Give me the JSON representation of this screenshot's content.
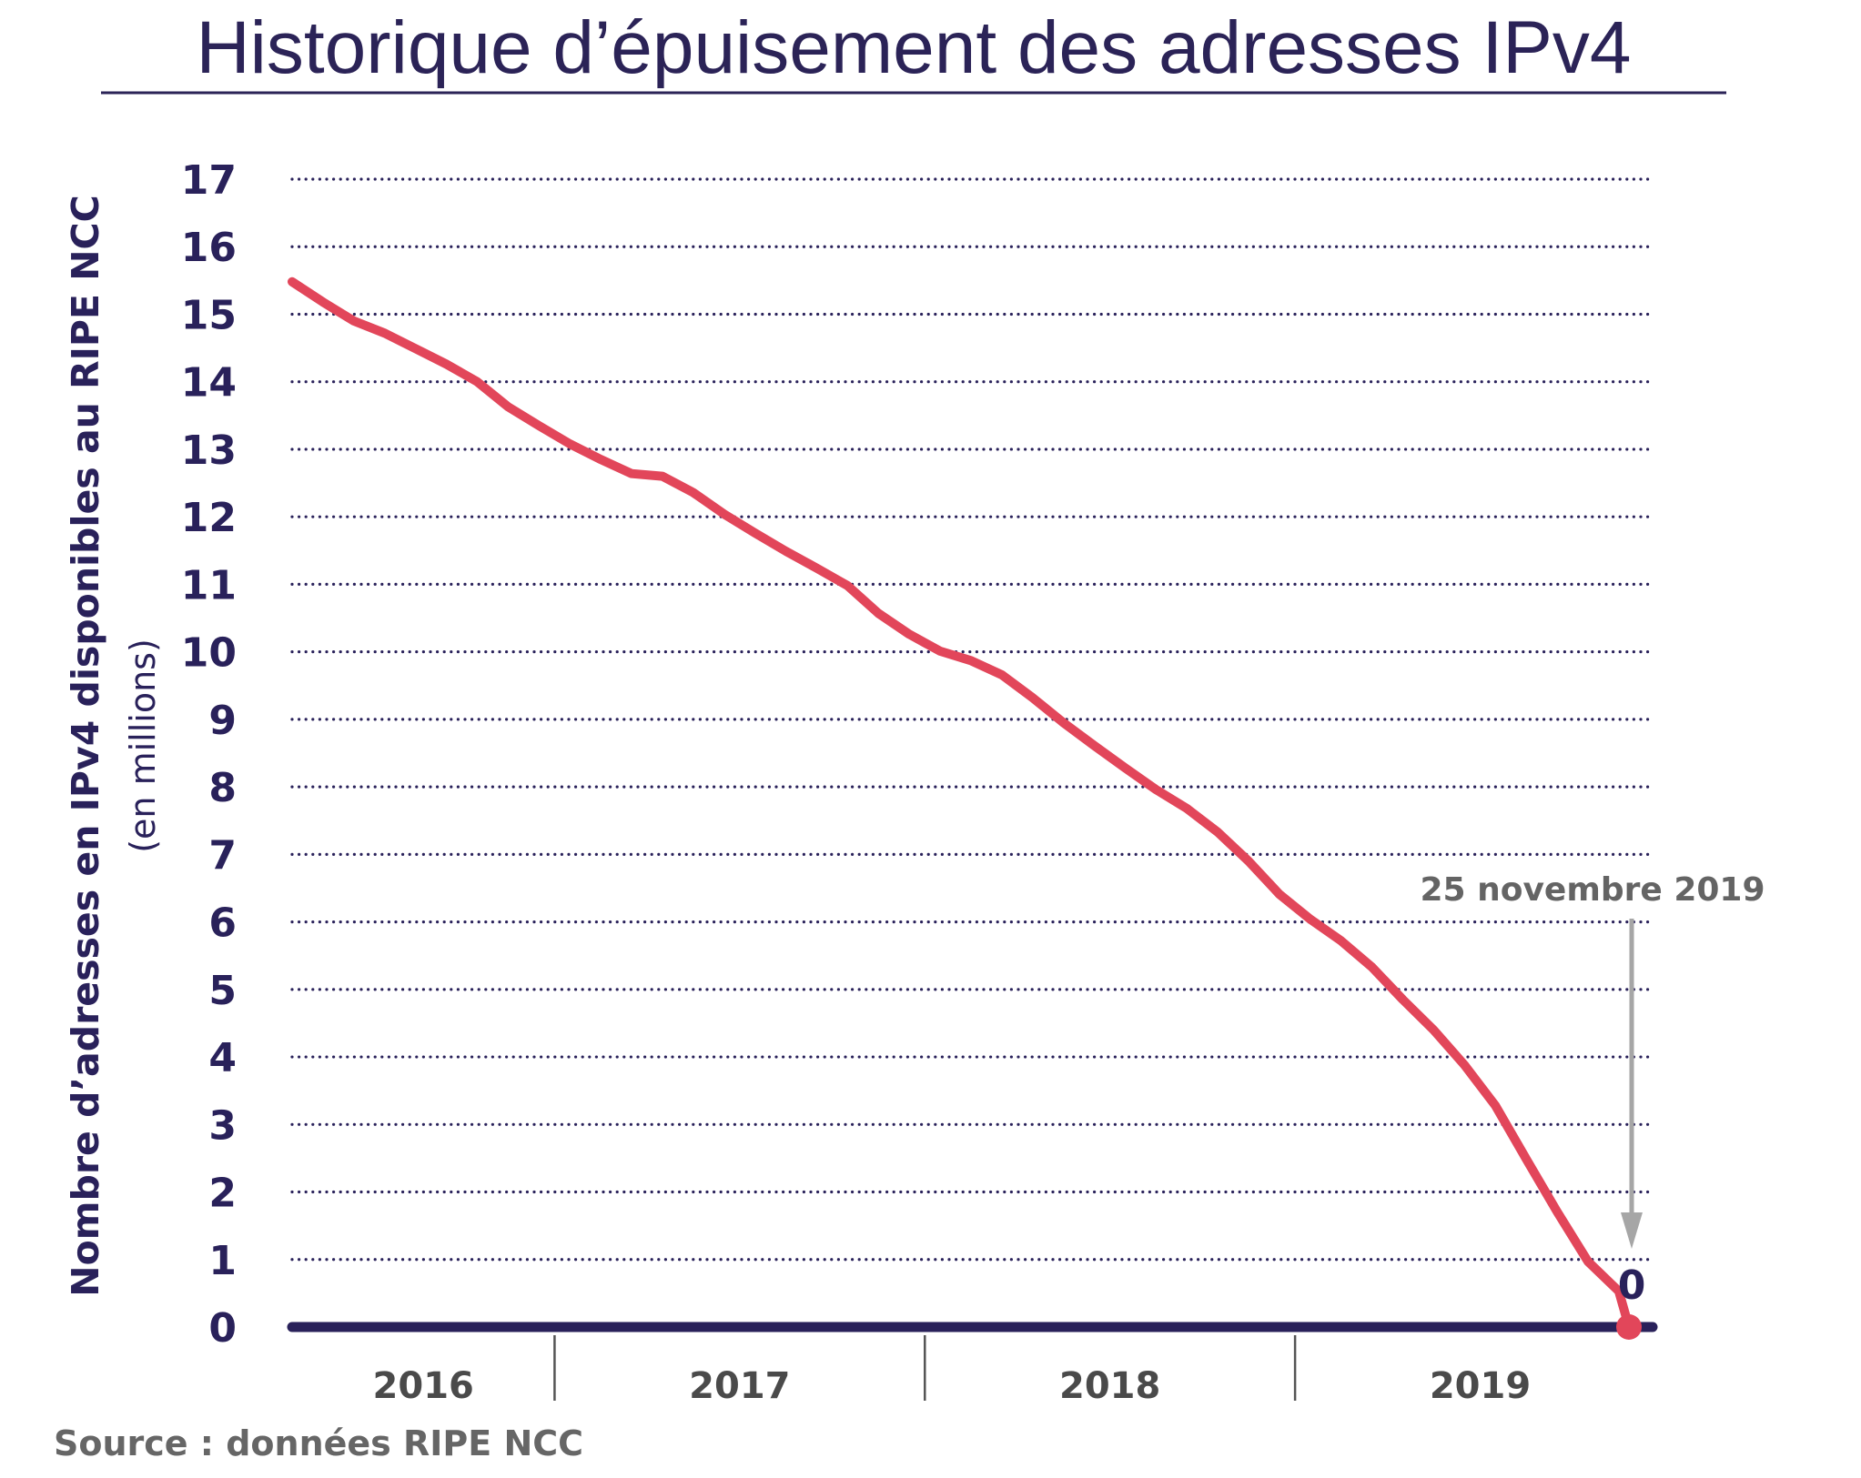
{
  "chart_data": {
    "type": "line",
    "title": "Historique d’épuisement des adresses IPv4",
    "ylabel": "Nombre d’adresses en IPv4 disponibles au RIPE NCC",
    "ylabel_unit": "(en millions)",
    "xlabel": "",
    "source": "Source : données RIPE NCC",
    "ylim": [
      0,
      17
    ],
    "yticks": [
      "0",
      "1",
      "2",
      "3",
      "4",
      "5",
      "6",
      "7",
      "8",
      "9",
      "10",
      "11",
      "12",
      "13",
      "14",
      "15",
      "16",
      "17"
    ],
    "xticks": [
      "2016",
      "2017",
      "2018",
      "2019"
    ],
    "grid": "horizontal dotted",
    "legend": "none",
    "colors": {
      "line": "#e2465a",
      "axis": "#29215a",
      "title": "#2b2357",
      "annotation": "#646464",
      "arrow": "#a6a6a6"
    },
    "annotation": {
      "label": "25 novembre 2019",
      "value_label": "0",
      "date": "2019-11-25",
      "value": 0
    },
    "series": [
      {
        "x": [
          "2016-04",
          "2016-05",
          "2016-06",
          "2016-07",
          "2016-08",
          "2016-09",
          "2016-10",
          "2016-11",
          "2016-12",
          "2017-01",
          "2017-02",
          "2017-03",
          "2017-04",
          "2017-05",
          "2017-06",
          "2017-07",
          "2017-08",
          "2017-09",
          "2017-10",
          "2017-11",
          "2017-12",
          "2018-01",
          "2018-02",
          "2018-03",
          "2018-04",
          "2018-05",
          "2018-06",
          "2018-07",
          "2018-08",
          "2018-09",
          "2018-10",
          "2018-11",
          "2018-12",
          "2019-01",
          "2019-02",
          "2019-03",
          "2019-04",
          "2019-05",
          "2019-06",
          "2019-07",
          "2019-08",
          "2019-09",
          "2019-10",
          "2019-11",
          "2019-11-25"
        ],
        "y": [
          15.48,
          15.18,
          14.9,
          14.72,
          14.49,
          14.26,
          14.0,
          13.63,
          13.35,
          13.08,
          12.85,
          12.64,
          12.6,
          12.36,
          12.04,
          11.76,
          11.49,
          11.24,
          10.98,
          10.57,
          10.26,
          10.01,
          9.87,
          9.66,
          9.32,
          8.95,
          8.61,
          8.28,
          7.96,
          7.68,
          7.33,
          6.9,
          6.41,
          6.04,
          5.72,
          5.33,
          4.85,
          4.4,
          3.88,
          3.28,
          2.49,
          1.71,
          0.97,
          0.53,
          0
        ]
      }
    ]
  }
}
